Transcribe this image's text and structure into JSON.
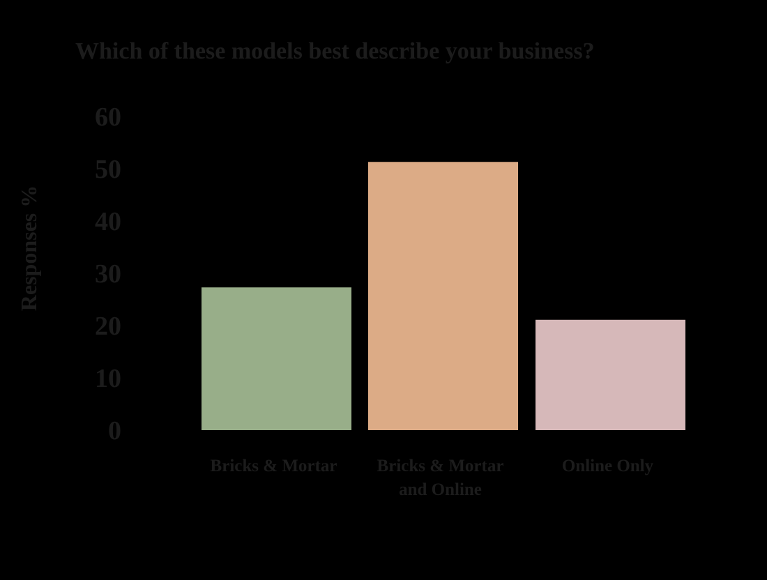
{
  "chart_data": {
    "type": "bar",
    "title": "Which of these models best describe your business?",
    "xlabel": "",
    "ylabel": "Responses %",
    "ylim": [
      0,
      60
    ],
    "yticks": [
      0,
      10,
      20,
      30,
      40,
      50,
      60
    ],
    "grid": false,
    "legend": "none",
    "categories": [
      [
        "Bricks & Mortar"
      ],
      [
        "Bricks & Mortar",
        "and Online"
      ],
      [
        "Online Only"
      ]
    ],
    "values": [
      27.3,
      51.3,
      21.1
    ],
    "colors": [
      "#98ae89",
      "#dcab86",
      "#d6b8b9"
    ]
  }
}
